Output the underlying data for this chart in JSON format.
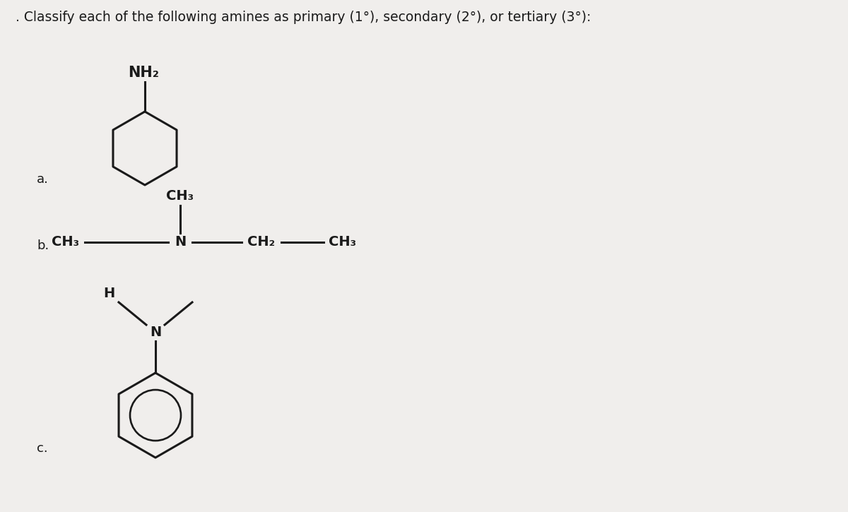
{
  "title": ". Classify each of the following amines as primary (1°), secondary (2°), or tertiary (3°):",
  "title_fontsize": 13.5,
  "bg_color": "#f0eeec",
  "text_color": "#1a1a1a",
  "label_a": "a.",
  "label_b": "b.",
  "label_c": "c.",
  "label_fontsize": 13,
  "chem_fontsize": 14,
  "lw": 2.2
}
